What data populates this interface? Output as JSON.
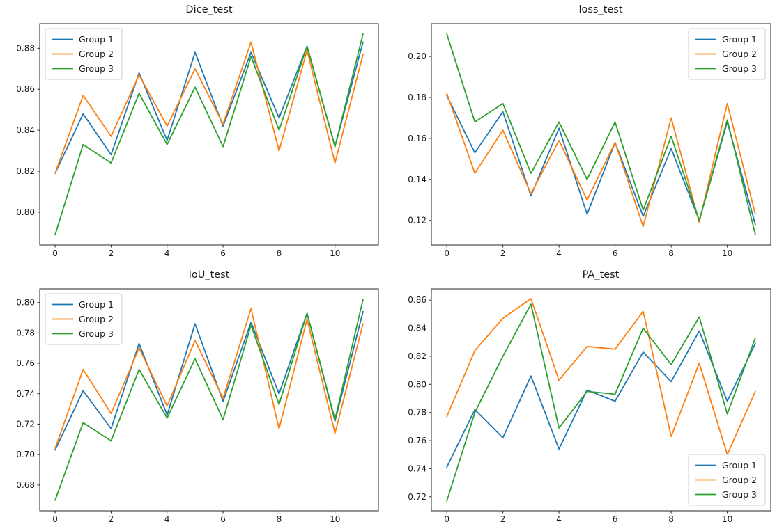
{
  "figure": {
    "background": "#ffffff",
    "text_color": "#1a1a1a",
    "spine_color": "#262626",
    "legend_border": "#cccccc",
    "series_colors": {
      "group1": "#1f77b4",
      "group2": "#ff7f0e",
      "group3": "#2ca02c"
    }
  },
  "chart_data": [
    {
      "type": "line",
      "title": "Dice_test",
      "xlabel": "",
      "ylabel": "",
      "x": [
        0,
        1,
        2,
        3,
        4,
        5,
        6,
        7,
        8,
        9,
        10,
        11
      ],
      "series": [
        {
          "name": "Group 1",
          "color": "#1f77b4",
          "values": [
            0.819,
            0.848,
            0.828,
            0.868,
            0.835,
            0.878,
            0.842,
            0.878,
            0.846,
            0.881,
            0.832,
            0.883
          ]
        },
        {
          "name": "Group 2",
          "color": "#ff7f0e",
          "values": [
            0.819,
            0.857,
            0.837,
            0.867,
            0.842,
            0.87,
            0.843,
            0.883,
            0.83,
            0.879,
            0.824,
            0.877
          ]
        },
        {
          "name": "Group 3",
          "color": "#2ca02c",
          "values": [
            0.789,
            0.833,
            0.824,
            0.858,
            0.833,
            0.861,
            0.832,
            0.876,
            0.84,
            0.881,
            0.832,
            0.887
          ]
        }
      ],
      "xticks": [
        0,
        2,
        4,
        6,
        8,
        10
      ],
      "yticks": [
        0.8,
        0.82,
        0.84,
        0.86,
        0.88
      ],
      "xlim": [
        -0.55,
        11.55
      ],
      "ylim": [
        0.784,
        0.892
      ],
      "legend_loc": "upper-left",
      "grid": false
    },
    {
      "type": "line",
      "title": "loss_test",
      "xlabel": "",
      "ylabel": "",
      "x": [
        0,
        1,
        2,
        3,
        4,
        5,
        6,
        7,
        8,
        9,
        10,
        11
      ],
      "series": [
        {
          "name": "Group 1",
          "color": "#1f77b4",
          "values": [
            0.181,
            0.153,
            0.173,
            0.132,
            0.165,
            0.123,
            0.158,
            0.122,
            0.155,
            0.12,
            0.168,
            0.118
          ]
        },
        {
          "name": "Group 2",
          "color": "#ff7f0e",
          "values": [
            0.182,
            0.143,
            0.164,
            0.133,
            0.159,
            0.13,
            0.158,
            0.117,
            0.17,
            0.119,
            0.177,
            0.123
          ]
        },
        {
          "name": "Group 3",
          "color": "#2ca02c",
          "values": [
            0.211,
            0.168,
            0.177,
            0.143,
            0.168,
            0.14,
            0.168,
            0.125,
            0.161,
            0.12,
            0.169,
            0.113
          ]
        }
      ],
      "xticks": [
        0,
        2,
        4,
        6,
        8,
        10
      ],
      "yticks": [
        0.12,
        0.14,
        0.16,
        0.18,
        0.2
      ],
      "xlim": [
        -0.55,
        11.55
      ],
      "ylim": [
        0.108,
        0.216
      ],
      "legend_loc": "upper-right",
      "grid": false
    },
    {
      "type": "line",
      "title": "IoU_test",
      "xlabel": "",
      "ylabel": "",
      "x": [
        0,
        1,
        2,
        3,
        4,
        5,
        6,
        7,
        8,
        9,
        10,
        11
      ],
      "series": [
        {
          "name": "Group 1",
          "color": "#1f77b4",
          "values": [
            0.703,
            0.742,
            0.717,
            0.773,
            0.726,
            0.786,
            0.735,
            0.787,
            0.74,
            0.793,
            0.722,
            0.794
          ]
        },
        {
          "name": "Group 2",
          "color": "#ff7f0e",
          "values": [
            0.704,
            0.756,
            0.727,
            0.77,
            0.732,
            0.775,
            0.737,
            0.796,
            0.717,
            0.789,
            0.714,
            0.786
          ]
        },
        {
          "name": "Group 3",
          "color": "#2ca02c",
          "values": [
            0.67,
            0.721,
            0.709,
            0.756,
            0.724,
            0.763,
            0.723,
            0.785,
            0.733,
            0.793,
            0.723,
            0.802
          ]
        }
      ],
      "xticks": [
        0,
        2,
        4,
        6,
        8,
        10
      ],
      "yticks": [
        0.68,
        0.7,
        0.72,
        0.74,
        0.76,
        0.78,
        0.8
      ],
      "xlim": [
        -0.55,
        11.55
      ],
      "ylim": [
        0.663,
        0.809
      ],
      "legend_loc": "upper-left",
      "grid": false
    },
    {
      "type": "line",
      "title": "PA_test",
      "xlabel": "",
      "ylabel": "",
      "x": [
        0,
        1,
        2,
        3,
        4,
        5,
        6,
        7,
        8,
        9,
        10,
        11
      ],
      "series": [
        {
          "name": "Group 1",
          "color": "#1f77b4",
          "values": [
            0.741,
            0.782,
            0.762,
            0.806,
            0.754,
            0.796,
            0.788,
            0.823,
            0.802,
            0.838,
            0.788,
            0.829
          ]
        },
        {
          "name": "Group 2",
          "color": "#ff7f0e",
          "values": [
            0.777,
            0.824,
            0.847,
            0.861,
            0.803,
            0.827,
            0.825,
            0.852,
            0.763,
            0.815,
            0.75,
            0.795
          ]
        },
        {
          "name": "Group 3",
          "color": "#2ca02c",
          "values": [
            0.717,
            0.78,
            0.82,
            0.857,
            0.769,
            0.795,
            0.793,
            0.84,
            0.814,
            0.848,
            0.779,
            0.833
          ]
        }
      ],
      "xticks": [
        0,
        2,
        4,
        6,
        8,
        10
      ],
      "yticks": [
        0.72,
        0.74,
        0.76,
        0.78,
        0.8,
        0.82,
        0.84,
        0.86
      ],
      "xlim": [
        -0.55,
        11.55
      ],
      "ylim": [
        0.71,
        0.868
      ],
      "legend_loc": "lower-right",
      "grid": false
    }
  ]
}
